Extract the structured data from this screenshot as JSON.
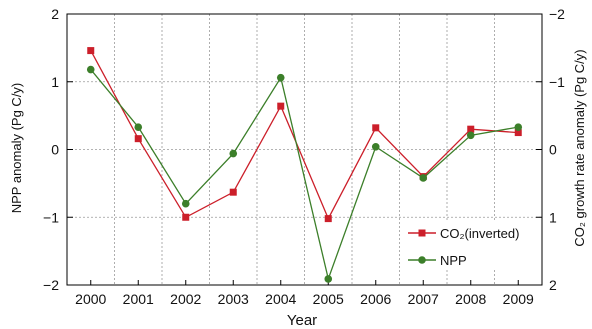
{
  "chart_data": {
    "type": "line",
    "x": [
      2000,
      2001,
      2002,
      2003,
      2004,
      2005,
      2006,
      2007,
      2008,
      2009
    ],
    "xlabel": "Year",
    "ylabel_left": "NPP anomaly (Pg C/y)",
    "ylabel_right": "CO₂ growth rate anomaly (Pg C/y)",
    "ylim_left": [
      -2,
      2
    ],
    "ylim_right_inverted": [
      2,
      -2
    ],
    "yticks_left": [
      "2",
      "1",
      "0",
      "−1",
      "−2"
    ],
    "yticks_right": [
      "−2",
      "−1",
      "0",
      "1",
      "2"
    ],
    "grid": true,
    "legend_placement": "bottom-right",
    "series": [
      {
        "name": "CO₂(inverted)",
        "color": "#cc1f2a",
        "marker": "square",
        "values": [
          1.46,
          0.16,
          -1.0,
          -0.63,
          0.64,
          -1.02,
          0.32,
          -0.4,
          0.3,
          0.25
        ]
      },
      {
        "name": "NPP",
        "color": "#3c7f2a",
        "marker": "circle",
        "values": [
          1.18,
          0.33,
          -0.8,
          -0.06,
          1.06,
          -1.91,
          0.04,
          -0.42,
          0.21,
          0.33
        ]
      }
    ]
  }
}
